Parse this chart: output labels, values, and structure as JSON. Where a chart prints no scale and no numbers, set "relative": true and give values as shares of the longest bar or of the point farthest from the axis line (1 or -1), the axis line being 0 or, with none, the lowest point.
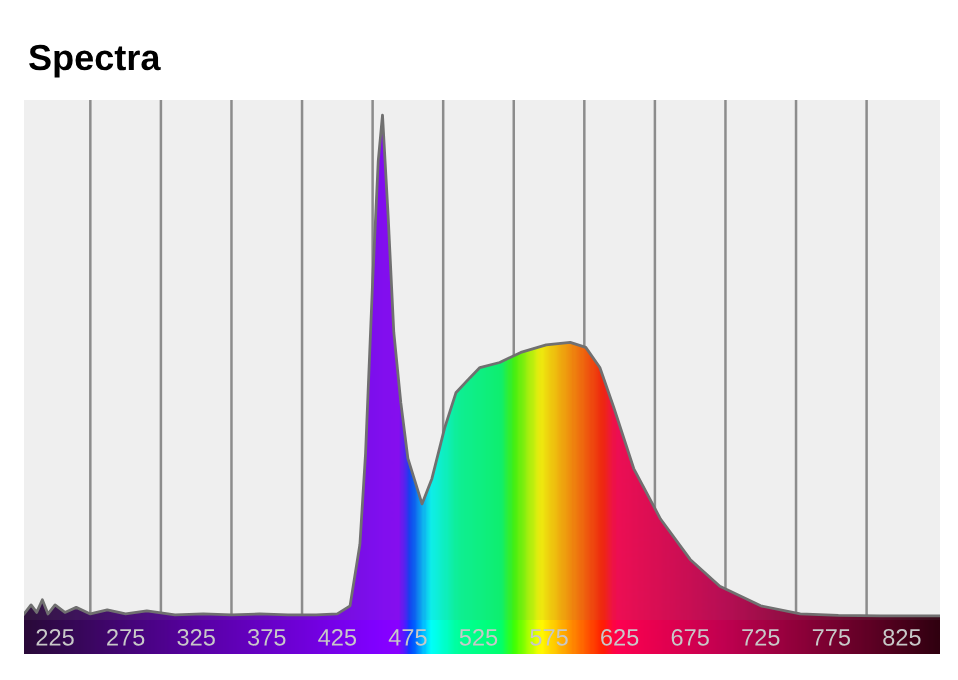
{
  "chart_data": {
    "type": "area",
    "title": "Spectra",
    "relative": true,
    "xlim": [
      203,
      852
    ],
    "xticks": [
      225,
      {
        "value": 250,
        "label": null
      },
      275,
      {
        "value": 300,
        "label": null
      },
      325,
      {
        "value": 350,
        "label": null
      },
      375,
      {
        "value": 400,
        "label": null
      },
      425,
      {
        "value": 450,
        "label": null
      },
      475,
      {
        "value": 500,
        "label": null
      },
      525,
      {
        "value": 550,
        "label": null
      },
      575,
      {
        "value": 600,
        "label": null
      },
      625,
      {
        "value": 650,
        "label": null
      },
      675,
      {
        "value": 700,
        "label": null
      },
      725,
      {
        "value": 750,
        "label": null
      },
      775,
      {
        "value": 800,
        "label": null
      },
      825
    ],
    "grid": "x",
    "series": [
      {
        "color": "#707070",
        "x": [
          203,
          208,
          212,
          216,
          220,
          225,
          232,
          240,
          250,
          262,
          275,
          290,
          310,
          330,
          350,
          370,
          390,
          410,
          425,
          434,
          441,
          445,
          450,
          454,
          457,
          461,
          465,
          470,
          475,
          485,
          492,
          501,
          509,
          519,
          526,
          540,
          555,
          573,
          590,
          601,
          611,
          621,
          635,
          654,
          675,
          696,
          725,
          753,
          780,
          810,
          852
        ],
        "values": [
          0.012,
          0.03,
          0.015,
          0.04,
          0.012,
          0.03,
          0.015,
          0.025,
          0.012,
          0.02,
          0.012,
          0.018,
          0.01,
          0.012,
          0.01,
          0.012,
          0.01,
          0.01,
          0.012,
          0.028,
          0.15,
          0.33,
          0.67,
          0.91,
          1.0,
          0.8,
          0.57,
          0.43,
          0.32,
          0.23,
          0.28,
          0.38,
          0.45,
          0.48,
          0.5,
          0.51,
          0.53,
          0.545,
          0.55,
          0.54,
          0.5,
          0.42,
          0.3,
          0.2,
          0.12,
          0.067,
          0.028,
          0.012,
          0.009,
          0.008,
          0.008
        ]
      }
    ]
  }
}
